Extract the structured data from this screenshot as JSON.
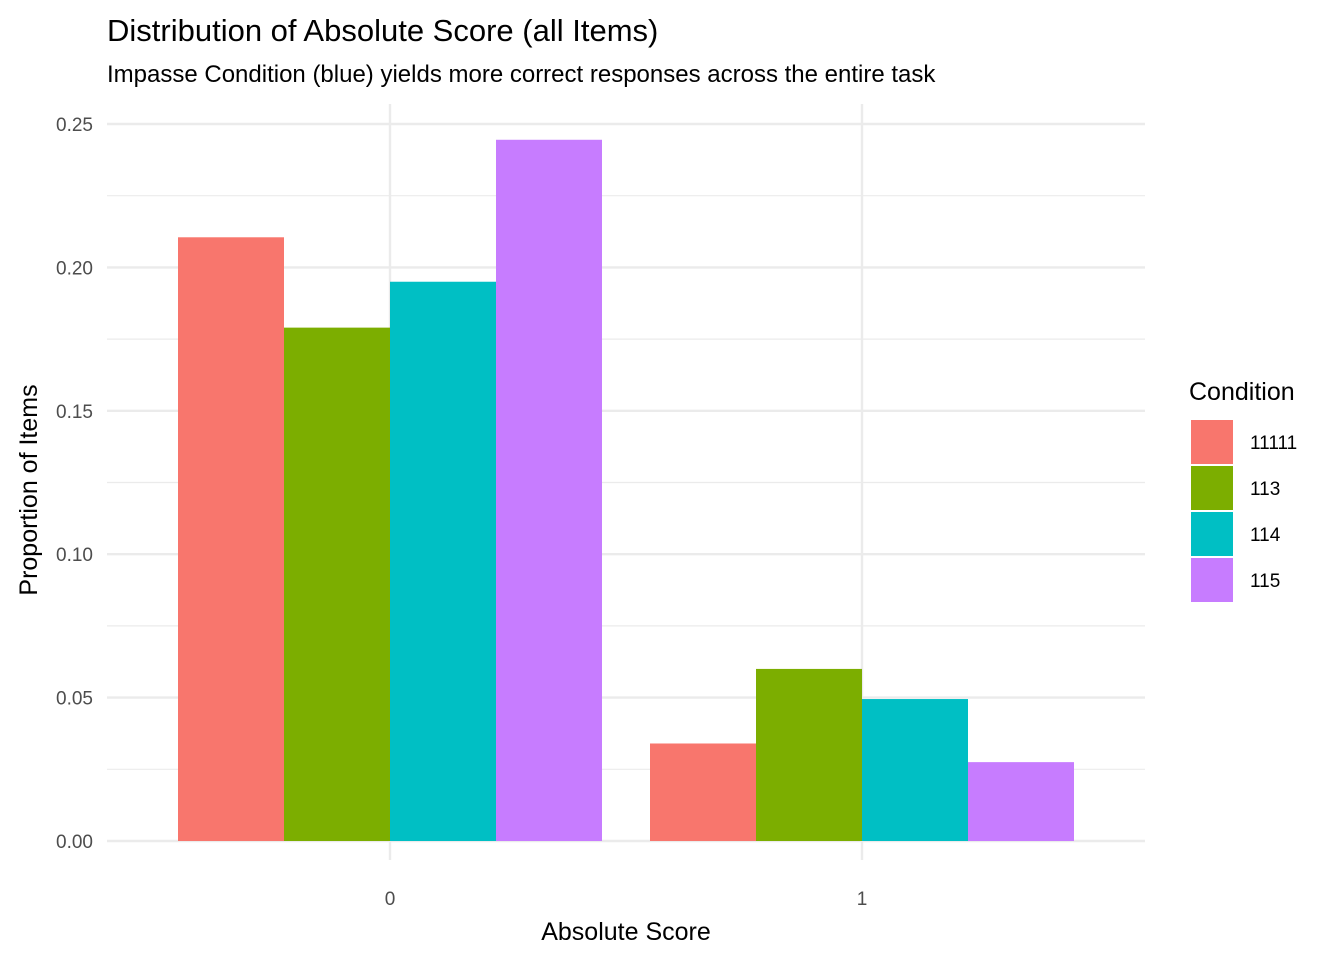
{
  "chart_data": {
    "type": "bar",
    "title": "Distribution of Absolute Score (all Items)",
    "subtitle": "Impasse Condition (blue) yields more correct responses across the entire task",
    "xlabel": "Absolute Score",
    "ylabel": "Proportion of Items",
    "categories": [
      "0",
      "1"
    ],
    "series": [
      {
        "name": "11111",
        "color": "#F8766D",
        "values": [
          0.2105,
          0.034
        ]
      },
      {
        "name": "113",
        "color": "#7CAE00",
        "values": [
          0.179,
          0.06
        ]
      },
      {
        "name": "114",
        "color": "#00BFC4",
        "values": [
          0.195,
          0.0495
        ]
      },
      {
        "name": "115",
        "color": "#C77CFF",
        "values": [
          0.2445,
          0.0275
        ]
      }
    ],
    "ylim": [
      0,
      0.25
    ],
    "yticks": [
      "0.00",
      "0.05",
      "0.10",
      "0.15",
      "0.20",
      "0.25"
    ],
    "grid": true,
    "legend": {
      "title": "Condition",
      "position": "right"
    }
  }
}
